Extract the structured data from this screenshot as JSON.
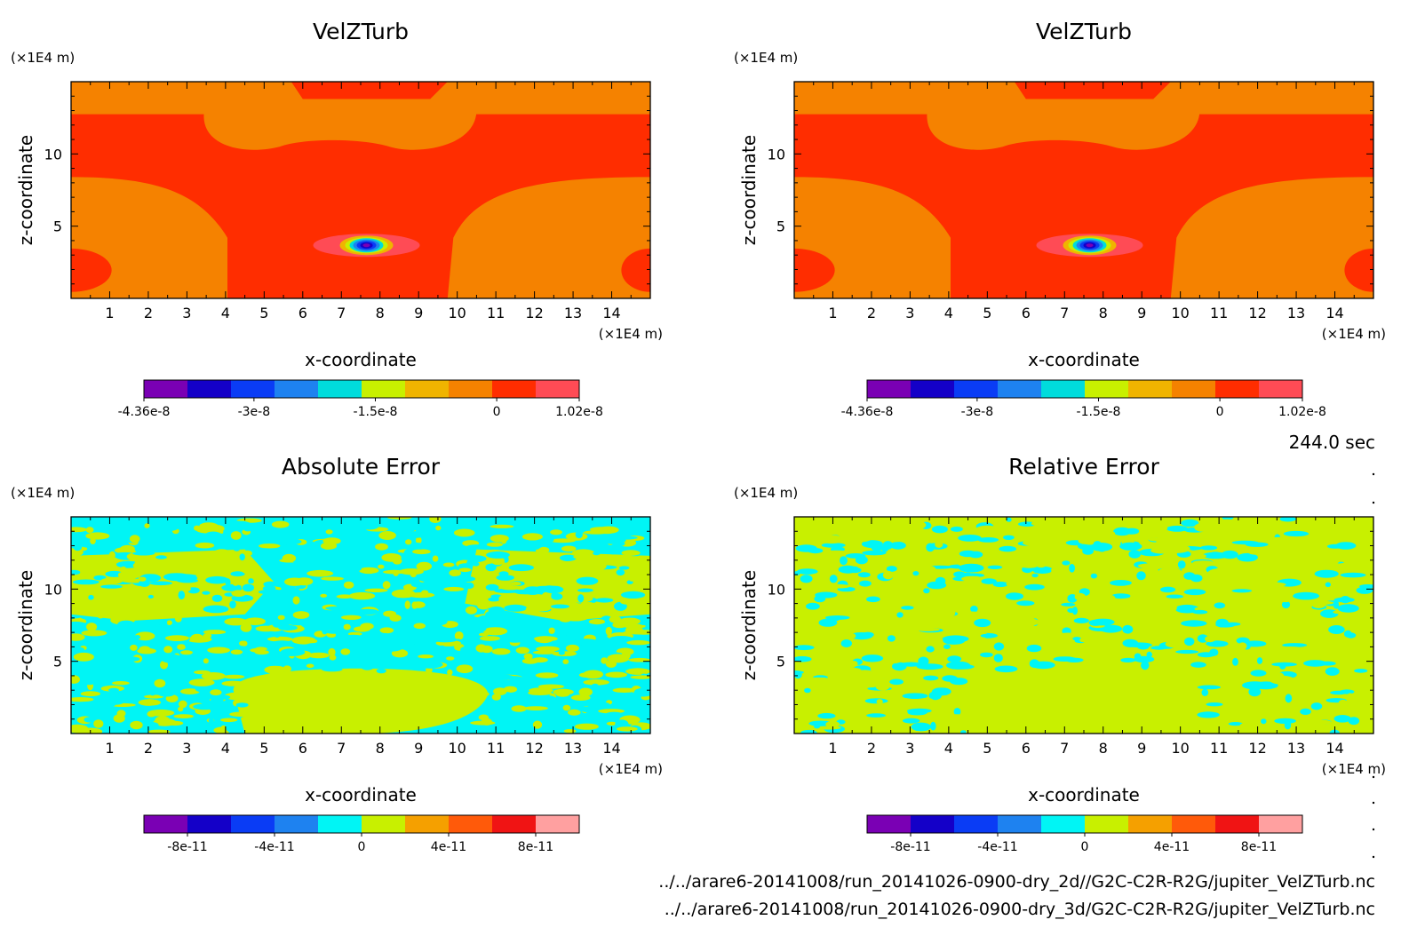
{
  "time_label": "244.0 sec",
  "file_paths": [
    "../../arare6-20141008/run_20141026-0900-dry_2d//G2C-C2R-R2G/jupiter_VelZTurb.nc",
    "../../arare6-20141008/run_20141026-0900-dry_3d/G2C-C2R-R2G/jupiter_VelZTurb.nc"
  ],
  "chart_data": [
    {
      "type": "heatmap",
      "title": "VelZTurb",
      "xlabel": "x-coordinate",
      "ylabel": "z-coordinate",
      "x_unit": "(×1E4 m)",
      "y_unit": "(×1E4 m)",
      "xlim": [
        0,
        15
      ],
      "ylim": [
        0,
        15
      ],
      "x_ticks": [
        1,
        2,
        3,
        4,
        5,
        6,
        7,
        8,
        9,
        10,
        11,
        12,
        13,
        14
      ],
      "y_ticks": [
        5,
        10
      ],
      "colorbar": {
        "colors": [
          "#7a00b4",
          "#1400c8",
          "#0a3cf5",
          "#1e82f0",
          "#00dcdc",
          "#c8f000",
          "#f0b400",
          "#f58200",
          "#ff2d00",
          "#ff4b55"
        ],
        "tick_labels": [
          "-4.36e-8",
          "-3e-8",
          "-1.5e-8",
          "0",
          "1.02e-8"
        ],
        "tick_values": [
          -4.36e-08,
          -3e-08,
          -1.5e-08,
          0,
          1.02e-08
        ],
        "range": [
          -4.36e-08,
          1.02e-08
        ]
      }
    },
    {
      "type": "heatmap",
      "title": "VelZTurb",
      "xlabel": "x-coordinate",
      "ylabel": "z-coordinate",
      "x_unit": "(×1E4 m)",
      "y_unit": "(×1E4 m)",
      "xlim": [
        0,
        15
      ],
      "ylim": [
        0,
        15
      ],
      "x_ticks": [
        1,
        2,
        3,
        4,
        5,
        6,
        7,
        8,
        9,
        10,
        11,
        12,
        13,
        14
      ],
      "y_ticks": [
        5,
        10
      ],
      "colorbar": {
        "colors": [
          "#7a00b4",
          "#1400c8",
          "#0a3cf5",
          "#1e82f0",
          "#00dcdc",
          "#c8f000",
          "#f0b400",
          "#f58200",
          "#ff2d00",
          "#ff4b55"
        ],
        "tick_labels": [
          "-4.36e-8",
          "-3e-8",
          "-1.5e-8",
          "0",
          "1.02e-8"
        ],
        "tick_values": [
          -4.36e-08,
          -3e-08,
          -1.5e-08,
          0,
          1.02e-08
        ],
        "range": [
          -4.36e-08,
          1.02e-08
        ]
      }
    },
    {
      "type": "heatmap",
      "title": "Absolute Error",
      "xlabel": "x-coordinate",
      "ylabel": "z-coordinate",
      "x_unit": "(×1E4 m)",
      "y_unit": "(×1E4 m)",
      "xlim": [
        0,
        15
      ],
      "ylim": [
        0,
        15
      ],
      "x_ticks": [
        1,
        2,
        3,
        4,
        5,
        6,
        7,
        8,
        9,
        10,
        11,
        12,
        13,
        14
      ],
      "y_ticks": [
        5,
        10
      ],
      "colorbar": {
        "colors": [
          "#7a00b4",
          "#1400c8",
          "#0a3cf5",
          "#1e82f0",
          "#00f5f5",
          "#c8f000",
          "#f5a000",
          "#ff5a0a",
          "#f01414",
          "#ffa0a0"
        ],
        "tick_labels": [
          "-8e-11",
          "-4e-11",
          "0",
          "4e-11",
          "8e-11"
        ],
        "tick_values": [
          -8e-11,
          -4e-11,
          0,
          4e-11,
          8e-11
        ],
        "range": [
          -1e-10,
          1e-10
        ]
      }
    },
    {
      "type": "heatmap",
      "title": "Relative Error",
      "xlabel": "x-coordinate",
      "ylabel": "z-coordinate",
      "x_unit": "(×1E4 m)",
      "y_unit": "(×1E4 m)",
      "xlim": [
        0,
        15
      ],
      "ylim": [
        0,
        15
      ],
      "x_ticks": [
        1,
        2,
        3,
        4,
        5,
        6,
        7,
        8,
        9,
        10,
        11,
        12,
        13,
        14
      ],
      "y_ticks": [
        5,
        10
      ],
      "colorbar": {
        "colors": [
          "#7a00b4",
          "#1400c8",
          "#0a3cf5",
          "#1e82f0",
          "#00f5f5",
          "#c8f000",
          "#f5a000",
          "#ff5a0a",
          "#f01414",
          "#ffa0a0"
        ],
        "tick_labels": [
          "-8e-11",
          "-4e-11",
          "0",
          "4e-11",
          "8e-11"
        ],
        "tick_values": [
          -8e-11,
          -4e-11,
          0,
          4e-11,
          8e-11
        ],
        "range": [
          -1e-10,
          1e-10
        ]
      }
    }
  ]
}
